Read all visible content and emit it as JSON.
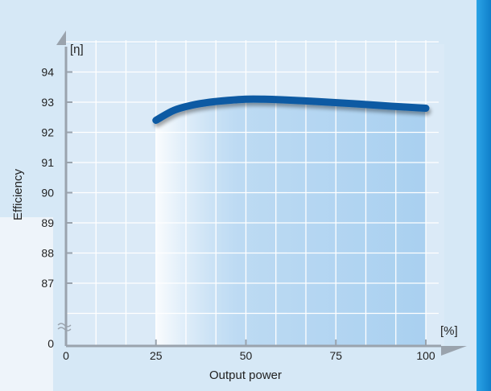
{
  "colors": {
    "background": "#d6e8f6",
    "plot_area": "#dbeaf7",
    "grid": "#ffffff",
    "curve": "#0b5aa3",
    "fill_highlight": "#a9d0f0",
    "axis_arrow": "#9aa3ad",
    "right_bar": "#1890d8",
    "text": "#222222"
  },
  "chart_data": {
    "type": "line",
    "x": [
      25,
      30,
      35,
      40,
      45,
      50,
      55,
      60,
      70,
      80,
      90,
      100
    ],
    "y": [
      92.4,
      92.73,
      92.9,
      93.0,
      93.06,
      93.1,
      93.1,
      93.08,
      93.02,
      92.95,
      92.87,
      92.8
    ],
    "xlabel": "Output power",
    "ylabel": "Efficiency",
    "x_unit": "[%]",
    "y_unit": "[η]",
    "xlim": [
      0,
      100
    ],
    "ylim_display": [
      87,
      94
    ],
    "axis_break": true,
    "xticks": [
      0,
      25,
      50,
      75,
      100
    ],
    "xtick_labels": [
      "0",
      "25",
      "50",
      "75",
      "100"
    ],
    "yticks": [
      87,
      88,
      89,
      90,
      91,
      92,
      93,
      94
    ],
    "ytick_labels": [
      "87",
      "88",
      "89",
      "90",
      "91",
      "92",
      "93",
      "94"
    ],
    "y_origin_label": "0",
    "grid": true,
    "shaded_region": [
      25,
      100
    ]
  }
}
